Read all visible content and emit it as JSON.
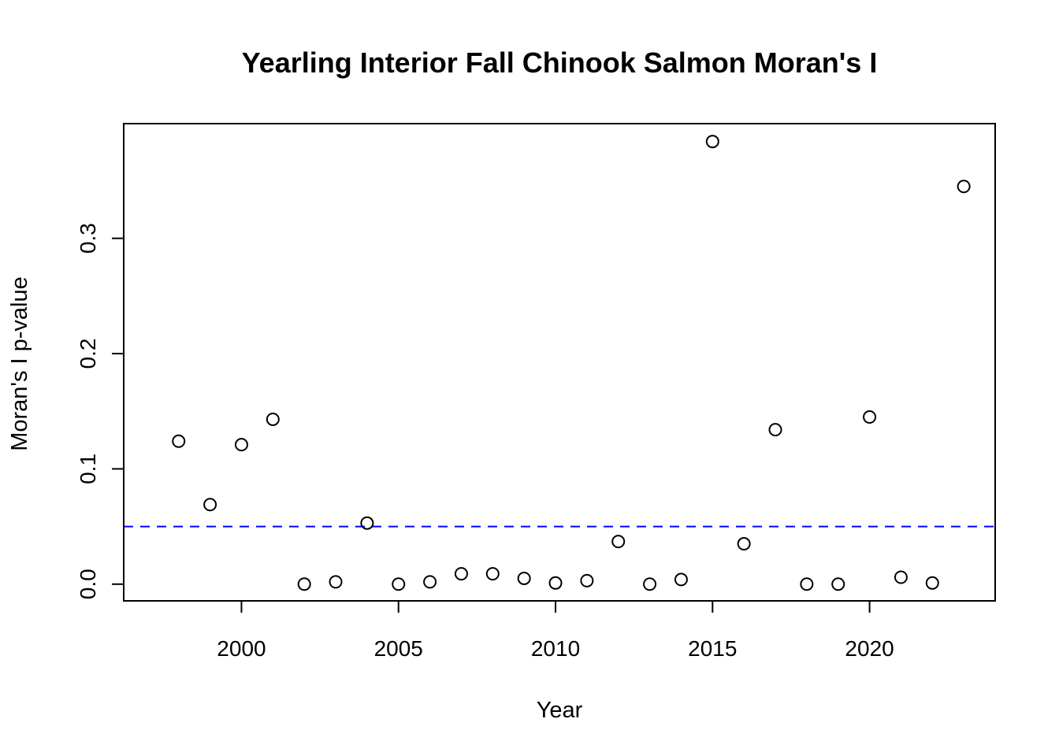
{
  "chart_data": {
    "type": "scatter",
    "title": "Yearling Interior Fall Chinook Salmon Moran's I",
    "xlabel": "Year",
    "ylabel": "Moran's I p-value",
    "xlim": [
      1996.25,
      2024.0
    ],
    "ylim": [
      -0.0145,
      0.3995
    ],
    "x_ticks": [
      2000,
      2005,
      2010,
      2015,
      2020
    ],
    "x_tick_labels": [
      "2000",
      "2005",
      "2010",
      "2015",
      "2020"
    ],
    "y_ticks": [
      0.0,
      0.1,
      0.2,
      0.3
    ],
    "y_tick_labels": [
      "0.0",
      "0.1",
      "0.2",
      "0.3"
    ],
    "grid": false,
    "reference_line": {
      "y": 0.05,
      "style": "dashed",
      "color": "#0000ff"
    },
    "points": [
      {
        "x": 1998,
        "y": 0.124
      },
      {
        "x": 1999,
        "y": 0.069
      },
      {
        "x": 2000,
        "y": 0.121
      },
      {
        "x": 2001,
        "y": 0.143
      },
      {
        "x": 2002,
        "y": 0.0
      },
      {
        "x": 2003,
        "y": 0.002
      },
      {
        "x": 2004,
        "y": 0.053
      },
      {
        "x": 2005,
        "y": 0.0
      },
      {
        "x": 2006,
        "y": 0.002
      },
      {
        "x": 2007,
        "y": 0.009
      },
      {
        "x": 2008,
        "y": 0.009
      },
      {
        "x": 2009,
        "y": 0.005
      },
      {
        "x": 2010,
        "y": 0.001
      },
      {
        "x": 2011,
        "y": 0.003
      },
      {
        "x": 2012,
        "y": 0.037
      },
      {
        "x": 2013,
        "y": 0.0
      },
      {
        "x": 2014,
        "y": 0.004
      },
      {
        "x": 2015,
        "y": 0.384
      },
      {
        "x": 2016,
        "y": 0.035
      },
      {
        "x": 2017,
        "y": 0.134
      },
      {
        "x": 2018,
        "y": 0.0
      },
      {
        "x": 2019,
        "y": 0.0
      },
      {
        "x": 2020,
        "y": 0.145
      },
      {
        "x": 2021,
        "y": 0.006
      },
      {
        "x": 2022,
        "y": 0.001
      },
      {
        "x": 2023,
        "y": 0.345
      }
    ],
    "colors": {
      "points": "#000000",
      "reference_line": "#0000ff",
      "axes": "#000000"
    }
  }
}
